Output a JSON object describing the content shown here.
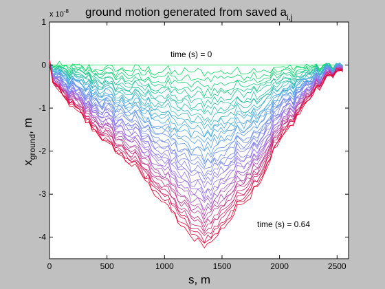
{
  "chart_data": {
    "type": "line",
    "title": "ground motion generated from saved a",
    "title_subscript": "i,j",
    "xlabel": "s, m",
    "ylabel_main": "x",
    "ylabel_subscript": "ground",
    "ylabel_suffix": ", m",
    "y_exponent_label": "x 10",
    "y_exponent_power": "-8",
    "xlim": [
      0,
      2600
    ],
    "ylim": [
      -4.5,
      1
    ],
    "x_ticks": [
      0,
      500,
      1000,
      1500,
      2000,
      2500
    ],
    "x_tick_labels": [
      "0",
      "500",
      "1000",
      "1500",
      "2000",
      "2500"
    ],
    "y_ticks": [
      -4,
      -3,
      -2,
      -1,
      0,
      1
    ],
    "y_tick_labels": [
      "-4",
      "-3",
      "-2",
      "-1",
      "0",
      "1"
    ],
    "grid": false,
    "num_curves": 40,
    "time_start_s": 0,
    "time_end_s": 0.64,
    "profile_s": [
      0,
      30,
      80,
      150,
      250,
      350,
      450,
      550,
      650,
      750,
      850,
      950,
      1050,
      1150,
      1250,
      1350,
      1450,
      1550,
      1650,
      1750,
      1850,
      1950,
      2050,
      2150,
      2250,
      2350,
      2450,
      2500,
      2550
    ],
    "final_curve_y": [
      0.05,
      -0.4,
      -0.65,
      -0.85,
      -1.1,
      -1.4,
      -1.7,
      -1.95,
      -2.2,
      -2.4,
      -2.75,
      -3.05,
      -3.35,
      -3.75,
      -4.05,
      -4.2,
      -4.0,
      -3.65,
      -3.3,
      -3.0,
      -2.6,
      -2.0,
      -1.6,
      -1.2,
      -0.8,
      -0.5,
      -0.2,
      -0.15,
      -0.1
    ],
    "color_start": "#00e050",
    "color_end": "#e8002a",
    "annotations": [
      {
        "text": "time (s) = 0",
        "x": 1050,
        "y": 0.2
      },
      {
        "text": "time (s) = 0.64",
        "x": 1800,
        "y": -3.75
      }
    ],
    "background_color": "#c0c0c0",
    "plot_area_color": "#ffffff"
  }
}
